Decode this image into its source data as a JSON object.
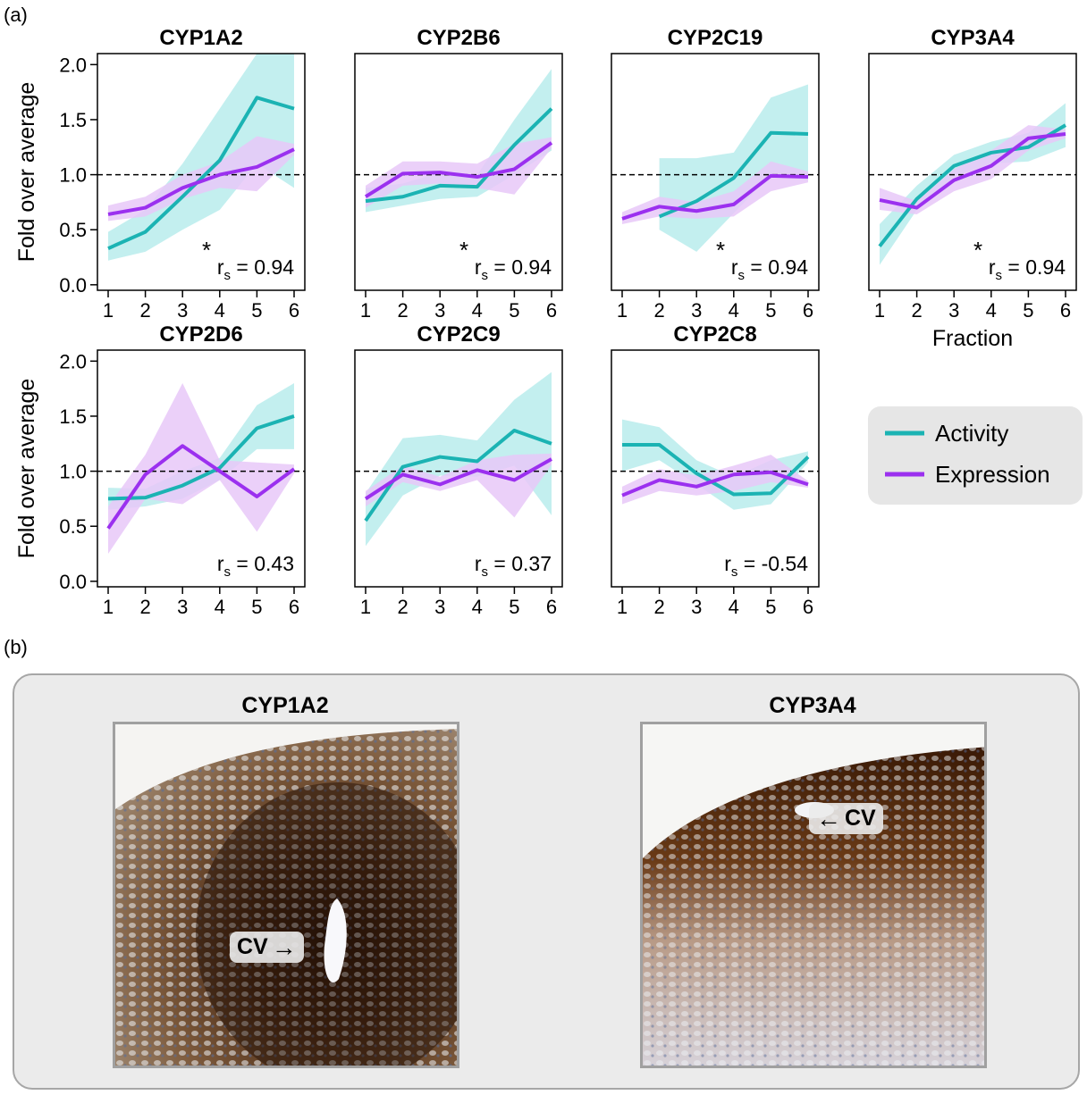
{
  "panel_a_label": "(a)",
  "panel_b_label": "(b)",
  "colors": {
    "activity": "#1bb3b3",
    "expression": "#9b30ef",
    "activity_band": "#b8ecec",
    "expression_band": "#e8c8f8"
  },
  "legend": {
    "activity": "Activity",
    "expression": "Expression"
  },
  "axis": {
    "ylabel": "Fold over average",
    "xlabel": "Fraction",
    "yticks": [
      "0.0",
      "0.5",
      "1.0",
      "1.5",
      "2.0"
    ],
    "xticks": [
      "1",
      "2",
      "3",
      "4",
      "5",
      "6"
    ]
  },
  "chart_data": [
    {
      "type": "line",
      "title": "CYP1A2",
      "x": [
        1,
        2,
        3,
        4,
        5,
        6
      ],
      "ylim": [
        -0.05,
        2.1
      ],
      "reference_line": 1.0,
      "annotation": "r_s = 0.94",
      "significant": true,
      "series": [
        {
          "name": "Activity",
          "values": [
            0.33,
            0.48,
            0.8,
            1.13,
            1.7,
            1.6
          ],
          "lower": [
            0.22,
            0.3,
            0.5,
            0.68,
            1.1,
            0.88
          ],
          "upper": [
            0.48,
            0.68,
            1.1,
            1.6,
            2.1,
            2.1
          ]
        },
        {
          "name": "Expression",
          "values": [
            0.64,
            0.7,
            0.88,
            1.0,
            1.07,
            1.23
          ],
          "lower": [
            0.58,
            0.62,
            0.78,
            0.88,
            0.85,
            1.18
          ],
          "upper": [
            0.72,
            0.8,
            1.0,
            1.12,
            1.35,
            1.28
          ]
        }
      ]
    },
    {
      "type": "line",
      "title": "CYP2B6",
      "x": [
        1,
        2,
        3,
        4,
        5,
        6
      ],
      "ylim": [
        -0.05,
        2.1
      ],
      "reference_line": 1.0,
      "annotation": "r_s = 0.94",
      "significant": true,
      "series": [
        {
          "name": "Activity",
          "values": [
            0.76,
            0.8,
            0.9,
            0.89,
            1.27,
            1.6
          ],
          "lower": [
            0.66,
            0.72,
            0.78,
            0.8,
            1.0,
            1.22
          ],
          "upper": [
            0.88,
            0.92,
            1.02,
            1.0,
            1.5,
            1.96
          ]
        },
        {
          "name": "Expression",
          "values": [
            0.8,
            1.01,
            1.02,
            0.98,
            1.05,
            1.29
          ],
          "lower": [
            0.7,
            0.9,
            0.92,
            0.88,
            0.82,
            1.24
          ],
          "upper": [
            0.9,
            1.12,
            1.12,
            1.1,
            1.28,
            1.34
          ]
        }
      ]
    },
    {
      "type": "line",
      "title": "CYP2C19",
      "x": [
        1,
        2,
        3,
        4,
        5,
        6
      ],
      "ylim": [
        -0.05,
        2.1
      ],
      "reference_line": 1.0,
      "annotation": "r_s = 0.94",
      "significant": true,
      "series": [
        {
          "name": "Activity",
          "values": [
            null,
            0.62,
            0.76,
            0.97,
            1.38,
            1.37
          ],
          "lower": [
            null,
            0.5,
            0.3,
            0.65,
            1.0,
            0.95
          ],
          "upper": [
            null,
            1.15,
            1.15,
            1.2,
            1.7,
            1.82
          ]
        },
        {
          "name": "Expression",
          "values": [
            0.6,
            0.71,
            0.67,
            0.73,
            0.99,
            0.98
          ],
          "lower": [
            0.55,
            0.62,
            0.6,
            0.62,
            0.85,
            0.93
          ],
          "upper": [
            0.66,
            0.8,
            0.75,
            0.85,
            1.12,
            1.03
          ]
        }
      ]
    },
    {
      "type": "line",
      "title": "CYP3A4",
      "x": [
        1,
        2,
        3,
        4,
        5,
        6
      ],
      "ylim": [
        -0.05,
        2.1
      ],
      "reference_line": 1.0,
      "annotation": "r_s = 0.94",
      "significant": true,
      "series": [
        {
          "name": "Activity",
          "values": [
            0.35,
            0.78,
            1.08,
            1.2,
            1.25,
            1.45
          ],
          "lower": [
            0.18,
            0.68,
            0.98,
            1.1,
            1.12,
            1.25
          ],
          "upper": [
            0.55,
            0.9,
            1.18,
            1.3,
            1.38,
            1.65
          ]
        },
        {
          "name": "Expression",
          "values": [
            0.77,
            0.7,
            0.95,
            1.08,
            1.33,
            1.37
          ],
          "lower": [
            0.68,
            0.64,
            0.85,
            0.96,
            1.22,
            1.33
          ],
          "upper": [
            0.88,
            0.76,
            1.05,
            1.22,
            1.45,
            1.41
          ]
        }
      ]
    },
    {
      "type": "line",
      "title": "CYP2D6",
      "x": [
        1,
        2,
        3,
        4,
        5,
        6
      ],
      "ylim": [
        -0.05,
        2.1
      ],
      "reference_line": 1.0,
      "annotation": "r_s = 0.43",
      "significant": false,
      "series": [
        {
          "name": "Activity",
          "values": [
            0.75,
            0.76,
            0.87,
            1.03,
            1.39,
            1.5
          ],
          "lower": [
            0.65,
            0.68,
            0.75,
            0.92,
            1.2,
            1.2
          ],
          "upper": [
            0.85,
            0.84,
            1.0,
            1.12,
            1.6,
            1.8
          ]
        },
        {
          "name": "Expression",
          "values": [
            0.48,
            0.97,
            1.23,
            1.0,
            0.77,
            1.02
          ],
          "lower": [
            0.25,
            0.75,
            0.7,
            0.92,
            0.45,
            0.98
          ],
          "upper": [
            0.68,
            1.15,
            1.8,
            1.1,
            1.08,
            1.06
          ]
        }
      ]
    },
    {
      "type": "line",
      "title": "CYP2C9",
      "x": [
        1,
        2,
        3,
        4,
        5,
        6
      ],
      "ylim": [
        -0.05,
        2.1
      ],
      "reference_line": 1.0,
      "annotation": "r_s = 0.37",
      "significant": false,
      "series": [
        {
          "name": "Activity",
          "values": [
            0.55,
            1.04,
            1.13,
            1.09,
            1.37,
            1.25
          ],
          "lower": [
            0.32,
            0.78,
            0.96,
            0.95,
            1.05,
            0.6
          ],
          "upper": [
            0.8,
            1.3,
            1.33,
            1.28,
            1.65,
            1.9
          ]
        },
        {
          "name": "Expression",
          "values": [
            0.75,
            0.97,
            0.88,
            1.01,
            0.92,
            1.11
          ],
          "lower": [
            0.68,
            0.9,
            0.82,
            0.92,
            0.58,
            1.06
          ],
          "upper": [
            0.82,
            1.05,
            0.95,
            1.1,
            1.15,
            1.16
          ]
        }
      ]
    },
    {
      "type": "line",
      "title": "CYP2C8",
      "x": [
        1,
        2,
        3,
        4,
        5,
        6
      ],
      "ylim": [
        -0.05,
        2.1
      ],
      "reference_line": 1.0,
      "annotation": "r_s = -0.54",
      "significant": false,
      "series": [
        {
          "name": "Activity",
          "values": [
            1.24,
            1.24,
            0.98,
            0.79,
            0.8,
            1.13
          ],
          "lower": [
            1.0,
            1.1,
            0.88,
            0.65,
            0.7,
            1.08
          ],
          "upper": [
            1.47,
            1.4,
            1.1,
            0.95,
            1.1,
            1.18
          ]
        },
        {
          "name": "Expression",
          "values": [
            0.78,
            0.92,
            0.86,
            0.97,
            0.99,
            0.88
          ],
          "lower": [
            0.7,
            0.82,
            0.78,
            0.82,
            0.9,
            0.85
          ],
          "upper": [
            0.86,
            1.02,
            0.96,
            1.05,
            1.15,
            0.91
          ]
        }
      ]
    }
  ],
  "panel_b": {
    "left": {
      "title": "CYP1A2",
      "label": "CV",
      "arrow": "→"
    },
    "right": {
      "title": "CYP3A4",
      "label": "CV",
      "arrow": "←"
    }
  }
}
